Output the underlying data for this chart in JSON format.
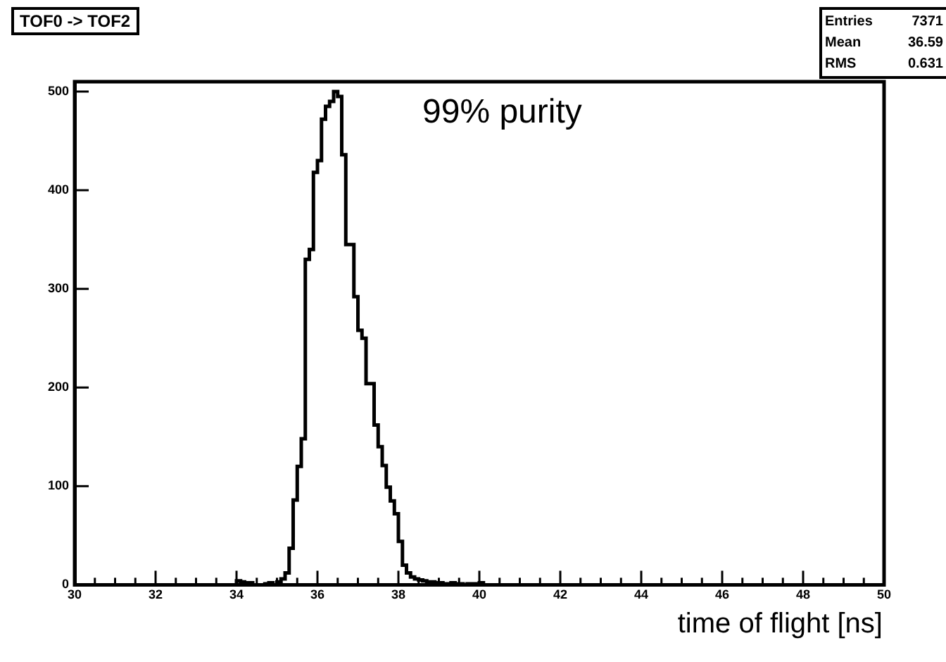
{
  "chart_data": {
    "type": "histogram",
    "title": "TOF0 -> TOF2",
    "xlabel": "time of flight [ns]",
    "annotations": [
      "99% purity",
      "Entries 7371",
      "Mean 36.59",
      "RMS 0.631"
    ],
    "bins": [
      30,
      34,
      34.1,
      34.2,
      34.3,
      34.4,
      34.5,
      34.6,
      34.7,
      34.8,
      34.9,
      35,
      35.1,
      35.2,
      35.3,
      35.4,
      35.5,
      35.6,
      35.7,
      35.8,
      35.9,
      36,
      36.1,
      36.2,
      36.3,
      36.4,
      36.5,
      36.6,
      36.7,
      36.8,
      36.9,
      37,
      37.1,
      37.2,
      37.3,
      37.4,
      37.5,
      37.6,
      37.7,
      37.8,
      37.9,
      38,
      38.1,
      38.2,
      38.3,
      38.4,
      38.5,
      38.6,
      38.7,
      38.8,
      38.9,
      39,
      39.1,
      39.2,
      39.3,
      39.4,
      39.5,
      39.6,
      39.7,
      39.8,
      39.9,
      40,
      40.1,
      50
    ],
    "values": [
      0,
      4,
      3,
      2,
      2,
      0,
      0,
      0,
      1,
      2,
      0,
      3,
      6,
      12,
      37,
      86,
      120,
      148,
      330,
      340,
      418,
      430,
      472,
      485,
      490,
      500,
      495,
      436,
      345,
      345,
      292,
      258,
      250,
      204,
      204,
      162,
      140,
      121,
      99,
      85,
      72,
      44,
      20,
      12,
      8,
      6,
      5,
      4,
      3,
      3,
      2,
      2,
      1,
      1,
      2,
      1,
      1,
      0,
      1,
      1,
      1,
      2,
      0
    ],
    "color": "#000000",
    "xlim": [
      30,
      50
    ],
    "ylim": [
      0,
      510
    ],
    "xticks": [
      30,
      {
        "value": 30.5,
        "label": null
      },
      {
        "value": 31,
        "label": null
      },
      {
        "value": 31.5,
        "label": null
      },
      32,
      {
        "value": 32.5,
        "label": null
      },
      {
        "value": 33,
        "label": null
      },
      {
        "value": 33.5,
        "label": null
      },
      34,
      {
        "value": 34.5,
        "label": null
      },
      {
        "value": 35,
        "label": null
      },
      {
        "value": 35.5,
        "label": null
      },
      36,
      {
        "value": 36.5,
        "label": null
      },
      {
        "value": 37,
        "label": null
      },
      {
        "value": 37.5,
        "label": null
      },
      38,
      {
        "value": 38.5,
        "label": null
      },
      {
        "value": 39,
        "label": null
      },
      {
        "value": 39.5,
        "label": null
      },
      40,
      {
        "value": 40.5,
        "label": null
      },
      {
        "value": 41,
        "label": null
      },
      {
        "value": 41.5,
        "label": null
      },
      42,
      {
        "value": 42.5,
        "label": null
      },
      {
        "value": 43,
        "label": null
      },
      {
        "value": 43.5,
        "label": null
      },
      44,
      {
        "value": 44.5,
        "label": null
      },
      {
        "value": 45,
        "label": null
      },
      {
        "value": 45.5,
        "label": null
      },
      46,
      {
        "value": 46.5,
        "label": null
      },
      {
        "value": 47,
        "label": null
      },
      {
        "value": 47.5,
        "label": null
      },
      48,
      {
        "value": 48.5,
        "label": null
      },
      {
        "value": 49,
        "label": null
      },
      {
        "value": 49.5,
        "label": null
      },
      50
    ],
    "yticks": [
      0,
      100,
      200,
      300,
      400,
      500
    ],
    "grid": false,
    "legend": false
  }
}
